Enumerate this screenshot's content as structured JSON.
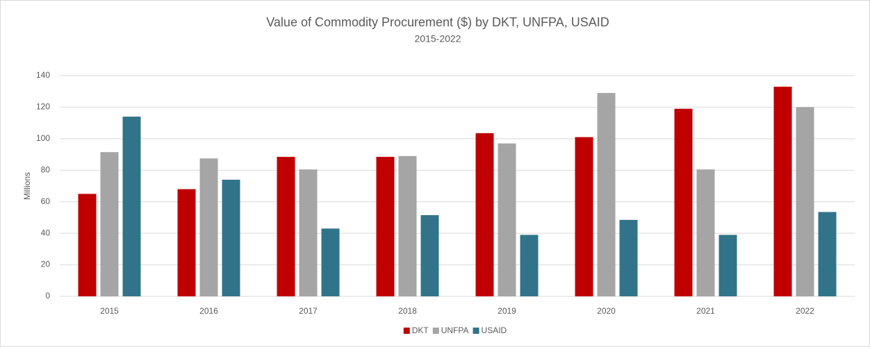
{
  "chart_data": {
    "type": "bar",
    "title": "Value of Commodity Procurement ($) by DKT, UNFPA, USAID",
    "subtitle": "2015-2022",
    "y_label": "Millions",
    "categories": [
      "2015",
      "2016",
      "2017",
      "2018",
      "2019",
      "2020",
      "2021",
      "2022"
    ],
    "series": [
      {
        "name": "DKT",
        "color": "#c00000",
        "values": [
          65,
          68,
          88.5,
          88.5,
          103.5,
          101,
          119,
          133
        ]
      },
      {
        "name": "UNFPA",
        "color": "#a5a5a5",
        "values": [
          91.5,
          87.5,
          80.5,
          89,
          97,
          129,
          80.5,
          120
        ]
      },
      {
        "name": "USAID",
        "color": "#31748a",
        "values": [
          114,
          74,
          43,
          51.5,
          39,
          48.5,
          39,
          53.5
        ]
      }
    ],
    "ylim": [
      0,
      140
    ],
    "yticks": [
      0,
      20,
      40,
      60,
      80,
      100,
      120,
      140
    ],
    "grid": true,
    "legend": "bottom"
  }
}
